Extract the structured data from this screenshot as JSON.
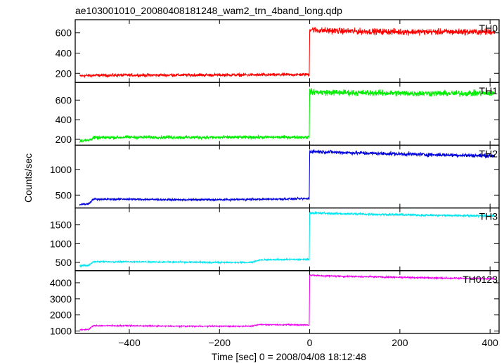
{
  "chart_data": {
    "type": "line",
    "title": "ae103001010_20080408181248_wam2_trn_4band_long.qdp",
    "xlabel": "Time [sec] 0 = 2008/04/08 18:12:48",
    "ylabel": "Counts/sec",
    "xlim": [
      -520,
      420
    ],
    "xticks": [
      -400,
      -200,
      0,
      200,
      400
    ],
    "x_tick_labels": [
      "−400",
      "−200",
      "0",
      "200",
      "400"
    ],
    "grid": false,
    "panels": [
      {
        "name": "TH0",
        "color": "#ff0000",
        "ylim": [
          110,
          730
        ],
        "yticks": [
          200,
          400,
          600
        ],
        "segments": [
          {
            "x": [
              -510,
              -480,
              -400,
              -300,
              -200,
              -100,
              -1
            ],
            "y": [
              175,
              180,
              182,
              183,
              184,
              185,
              188
            ],
            "noise": 22
          },
          {
            "x": [
              0,
              20,
              100,
              200,
              300,
              410
            ],
            "y": [
              635,
              625,
              615,
              610,
              610,
              610
            ],
            "noise": 45
          }
        ]
      },
      {
        "name": "TH1",
        "color": "#00ee00",
        "ylim": [
          140,
          780
        ],
        "yticks": [
          200,
          400,
          600
        ],
        "segments": [
          {
            "x": [
              -510,
              -490,
              -480,
              -400,
              -300,
              -200,
              -1
            ],
            "y": [
              185,
              190,
              215,
              222,
              220,
              220,
              222
            ],
            "noise": 25
          },
          {
            "x": [
              0,
              20,
              100,
              200,
              300,
              410
            ],
            "y": [
              685,
              680,
              675,
              670,
              668,
              670
            ],
            "noise": 45
          }
        ]
      },
      {
        "name": "TH2",
        "color": "#0000dd",
        "ylim": [
          250,
          1470
        ],
        "yticks": [
          500,
          1000
        ],
        "segments": [
          {
            "x": [
              -510,
              -490,
              -480,
              -400,
              -300,
              -200,
              -100,
              -1
            ],
            "y": [
              320,
              330,
              420,
              420,
              410,
              410,
              420,
              430
            ],
            "noise": 28
          },
          {
            "x": [
              0,
              20,
              100,
              200,
              300,
              410
            ],
            "y": [
              1350,
              1345,
              1320,
              1300,
              1280,
              1265
            ],
            "noise": 55
          }
        ]
      },
      {
        "name": "TH3",
        "color": "#00e5ee",
        "ylim": [
          280,
          1950
        ],
        "yticks": [
          500,
          1000,
          1500
        ],
        "segments": [
          {
            "x": [
              -510,
              -490,
              -480,
              -400,
              -300,
              -200,
              -130,
              -110,
              -1
            ],
            "y": [
              410,
              420,
              520,
              520,
              510,
              500,
              500,
              570,
              580
            ],
            "noise": 30
          },
          {
            "x": [
              0,
              20,
              100,
              200,
              300,
              410
            ],
            "y": [
              1820,
              1810,
              1790,
              1770,
              1750,
              1740
            ],
            "noise": 45
          }
        ]
      },
      {
        "name": "TH0123",
        "color": "#ee00ee",
        "ylim": [
          850,
          4750
        ],
        "yticks": [
          1000,
          2000,
          3000,
          4000
        ],
        "segments": [
          {
            "x": [
              -510,
              -490,
              -480,
              -400,
              -300,
              -200,
              -130,
              -110,
              -1
            ],
            "y": [
              1080,
              1100,
              1330,
              1330,
              1300,
              1300,
              1300,
              1400,
              1380
            ],
            "noise": 55
          },
          {
            "x": [
              0,
              20,
              100,
              200,
              300,
              410
            ],
            "y": [
              4480,
              4440,
              4390,
              4340,
              4290,
              4260
            ],
            "noise": 75
          }
        ]
      }
    ]
  }
}
